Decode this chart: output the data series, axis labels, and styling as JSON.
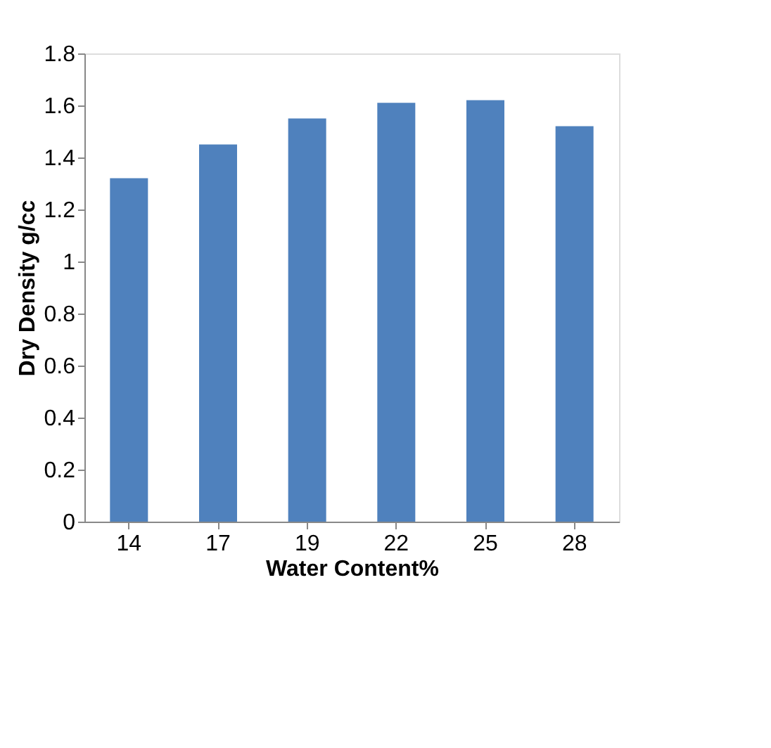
{
  "chart_data": {
    "type": "bar",
    "xlabel": "Water Content%",
    "ylabel": "Dry Density g/cc",
    "categories": [
      "14",
      "17",
      "19",
      "22",
      "25",
      "28"
    ],
    "values": [
      1.32,
      1.45,
      1.55,
      1.61,
      1.62,
      1.52
    ],
    "color": "#4f81bd",
    "ylim": [
      0,
      1.8
    ],
    "yticks": [
      0,
      0.2,
      0.4,
      0.6,
      0.8,
      1,
      1.2,
      1.4,
      1.6,
      1.8
    ],
    "grid": false
  }
}
